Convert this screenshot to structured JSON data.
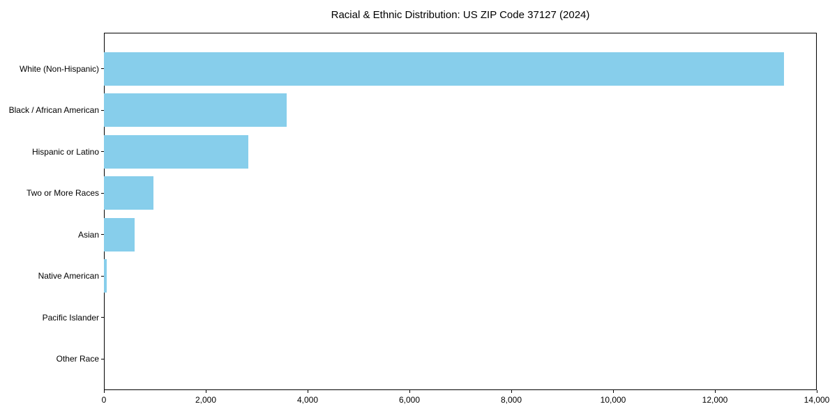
{
  "page": {
    "background_color": "#ffffff"
  },
  "chart_data": {
    "type": "bar",
    "orientation": "horizontal",
    "title": "Racial & Ethnic Distribution: US ZIP Code 37127 (2024)",
    "categories": [
      "White (Non-Hispanic)",
      "Black / African American",
      "Hispanic or Latino",
      "Two or More Races",
      "Asian",
      "Native American",
      "Pacific Islander",
      "Other Race"
    ],
    "values": [
      13360,
      3590,
      2840,
      970,
      600,
      50,
      0,
      0
    ],
    "xlabel": "",
    "ylabel": "",
    "xlim": [
      0,
      14000
    ],
    "x_ticks": [
      0,
      2000,
      4000,
      6000,
      8000,
      10000,
      12000,
      14000
    ],
    "x_tick_labels": [
      "0",
      "2,000",
      "4,000",
      "6,000",
      "8,000",
      "10,000",
      "12,000",
      "14,000"
    ],
    "bar_color": "#87CEEB",
    "axis_color": "#000000",
    "grid": false,
    "legend": "none",
    "bar_height_ratio": 0.8
  }
}
